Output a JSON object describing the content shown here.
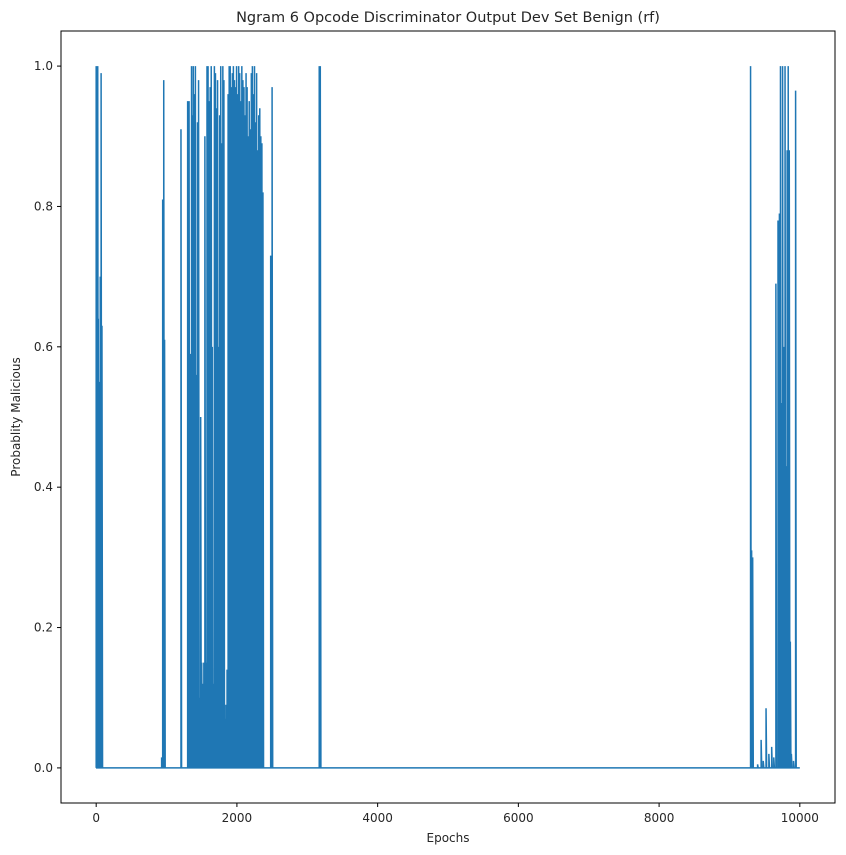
{
  "chart_data": {
    "type": "line",
    "title": "Ngram 6 Opcode Discriminator Output Dev Set Benign (rf)",
    "xlabel": "Epochs",
    "ylabel": "Probablity Malicious",
    "xlim": [
      -500,
      10500
    ],
    "ylim": [
      -0.05,
      1.05
    ],
    "xticks": [
      0,
      2000,
      4000,
      6000,
      8000,
      10000
    ],
    "xtick_labels": [
      "0",
      "2000",
      "4000",
      "6000",
      "8000",
      "10000"
    ],
    "yticks": [
      0.0,
      0.2,
      0.4,
      0.6,
      0.8,
      1.0
    ],
    "ytick_labels": [
      "0.0",
      "0.2",
      "0.4",
      "0.6",
      "0.8",
      "1.0"
    ],
    "grid": false,
    "legend": "none",
    "line_color": "#1f77b4",
    "series": [
      {
        "x_start": 0,
        "x_end": 10000,
        "baseline": 0.0,
        "spikes": [
          [
            0,
            1.0
          ],
          [
            8,
            1.0
          ],
          [
            15,
            0.83
          ],
          [
            22,
            1.0
          ],
          [
            30,
            0.64
          ],
          [
            40,
            0.55
          ],
          [
            58,
            0.7
          ],
          [
            70,
            0.99
          ],
          [
            82,
            0.63
          ],
          [
            930,
            0.015
          ],
          [
            945,
            0.81
          ],
          [
            960,
            0.98
          ],
          [
            972,
            0.61
          ],
          [
            1205,
            0.91
          ],
          [
            1300,
            0.95
          ],
          [
            1320,
            0.95
          ],
          [
            1338,
            0.59
          ],
          [
            1355,
            1.0
          ],
          [
            1368,
            0.93
          ],
          [
            1380,
            1.0
          ],
          [
            1395,
            0.96
          ],
          [
            1410,
            1.0
          ],
          [
            1425,
            0.56
          ],
          [
            1440,
            0.92
          ],
          [
            1455,
            0.98
          ],
          [
            1470,
            0.1
          ],
          [
            1485,
            0.5
          ],
          [
            1500,
            0.15
          ],
          [
            1515,
            0.12
          ],
          [
            1530,
            0.15
          ],
          [
            1545,
            0.9
          ],
          [
            1560,
            0.15
          ],
          [
            1575,
            1.0
          ],
          [
            1590,
            1.0
          ],
          [
            1605,
            0.95
          ],
          [
            1620,
            0.97
          ],
          [
            1635,
            1.0
          ],
          [
            1650,
            0.6
          ],
          [
            1665,
            0.12
          ],
          [
            1680,
            1.0
          ],
          [
            1695,
            0.99
          ],
          [
            1710,
            0.94
          ],
          [
            1725,
            0.98
          ],
          [
            1740,
            0.6
          ],
          [
            1755,
            0.93
          ],
          [
            1770,
            1.0
          ],
          [
            1785,
            0.89
          ],
          [
            1800,
            1.0
          ],
          [
            1815,
            0.98
          ],
          [
            1830,
            0.07
          ],
          [
            1845,
            0.09
          ],
          [
            1860,
            0.14
          ],
          [
            1875,
            0.96
          ],
          [
            1890,
            1.0
          ],
          [
            1905,
            1.0
          ],
          [
            1920,
            0.97
          ],
          [
            1935,
            0.99
          ],
          [
            1950,
            1.0
          ],
          [
            1965,
            0.98
          ],
          [
            1980,
            0.97
          ],
          [
            1995,
            1.0
          ],
          [
            2010,
            0.96
          ],
          [
            2025,
            1.0
          ],
          [
            2040,
            0.99
          ],
          [
            2055,
            0.95
          ],
          [
            2070,
            1.0
          ],
          [
            2085,
            0.98
          ],
          [
            2100,
            0.97
          ],
          [
            2115,
            0.93
          ],
          [
            2130,
            0.99
          ],
          [
            2145,
            0.97
          ],
          [
            2160,
            0.9
          ],
          [
            2175,
            0.95
          ],
          [
            2190,
            0.91
          ],
          [
            2205,
            0.99
          ],
          [
            2220,
            1.0
          ],
          [
            2235,
            0.96
          ],
          [
            2250,
            1.0
          ],
          [
            2265,
            0.92
          ],
          [
            2280,
            0.99
          ],
          [
            2295,
            0.88
          ],
          [
            2310,
            0.93
          ],
          [
            2325,
            0.94
          ],
          [
            2340,
            0.9
          ],
          [
            2355,
            0.89
          ],
          [
            2370,
            0.82
          ],
          [
            2480,
            0.73
          ],
          [
            2500,
            0.97
          ],
          [
            3170,
            1.0
          ],
          [
            3185,
            1.0
          ],
          [
            9300,
            1.0
          ],
          [
            9315,
            0.31
          ],
          [
            9330,
            0.3
          ],
          [
            9400,
            0.005
          ],
          [
            9450,
            0.04
          ],
          [
            9480,
            0.01
          ],
          [
            9520,
            0.085
          ],
          [
            9560,
            0.02
          ],
          [
            9600,
            0.03
          ],
          [
            9630,
            0.015
          ],
          [
            9660,
            0.69
          ],
          [
            9690,
            0.78
          ],
          [
            9710,
            0.79
          ],
          [
            9725,
            1.0
          ],
          [
            9740,
            0.52
          ],
          [
            9755,
            1.0
          ],
          [
            9770,
            0.6
          ],
          [
            9790,
            1.0
          ],
          [
            9805,
            0.43
          ],
          [
            9820,
            0.88
          ],
          [
            9835,
            1.0
          ],
          [
            9850,
            0.88
          ],
          [
            9865,
            0.18
          ],
          [
            9880,
            0.02
          ],
          [
            9910,
            0.01
          ],
          [
            9940,
            0.965
          ]
        ]
      }
    ]
  }
}
